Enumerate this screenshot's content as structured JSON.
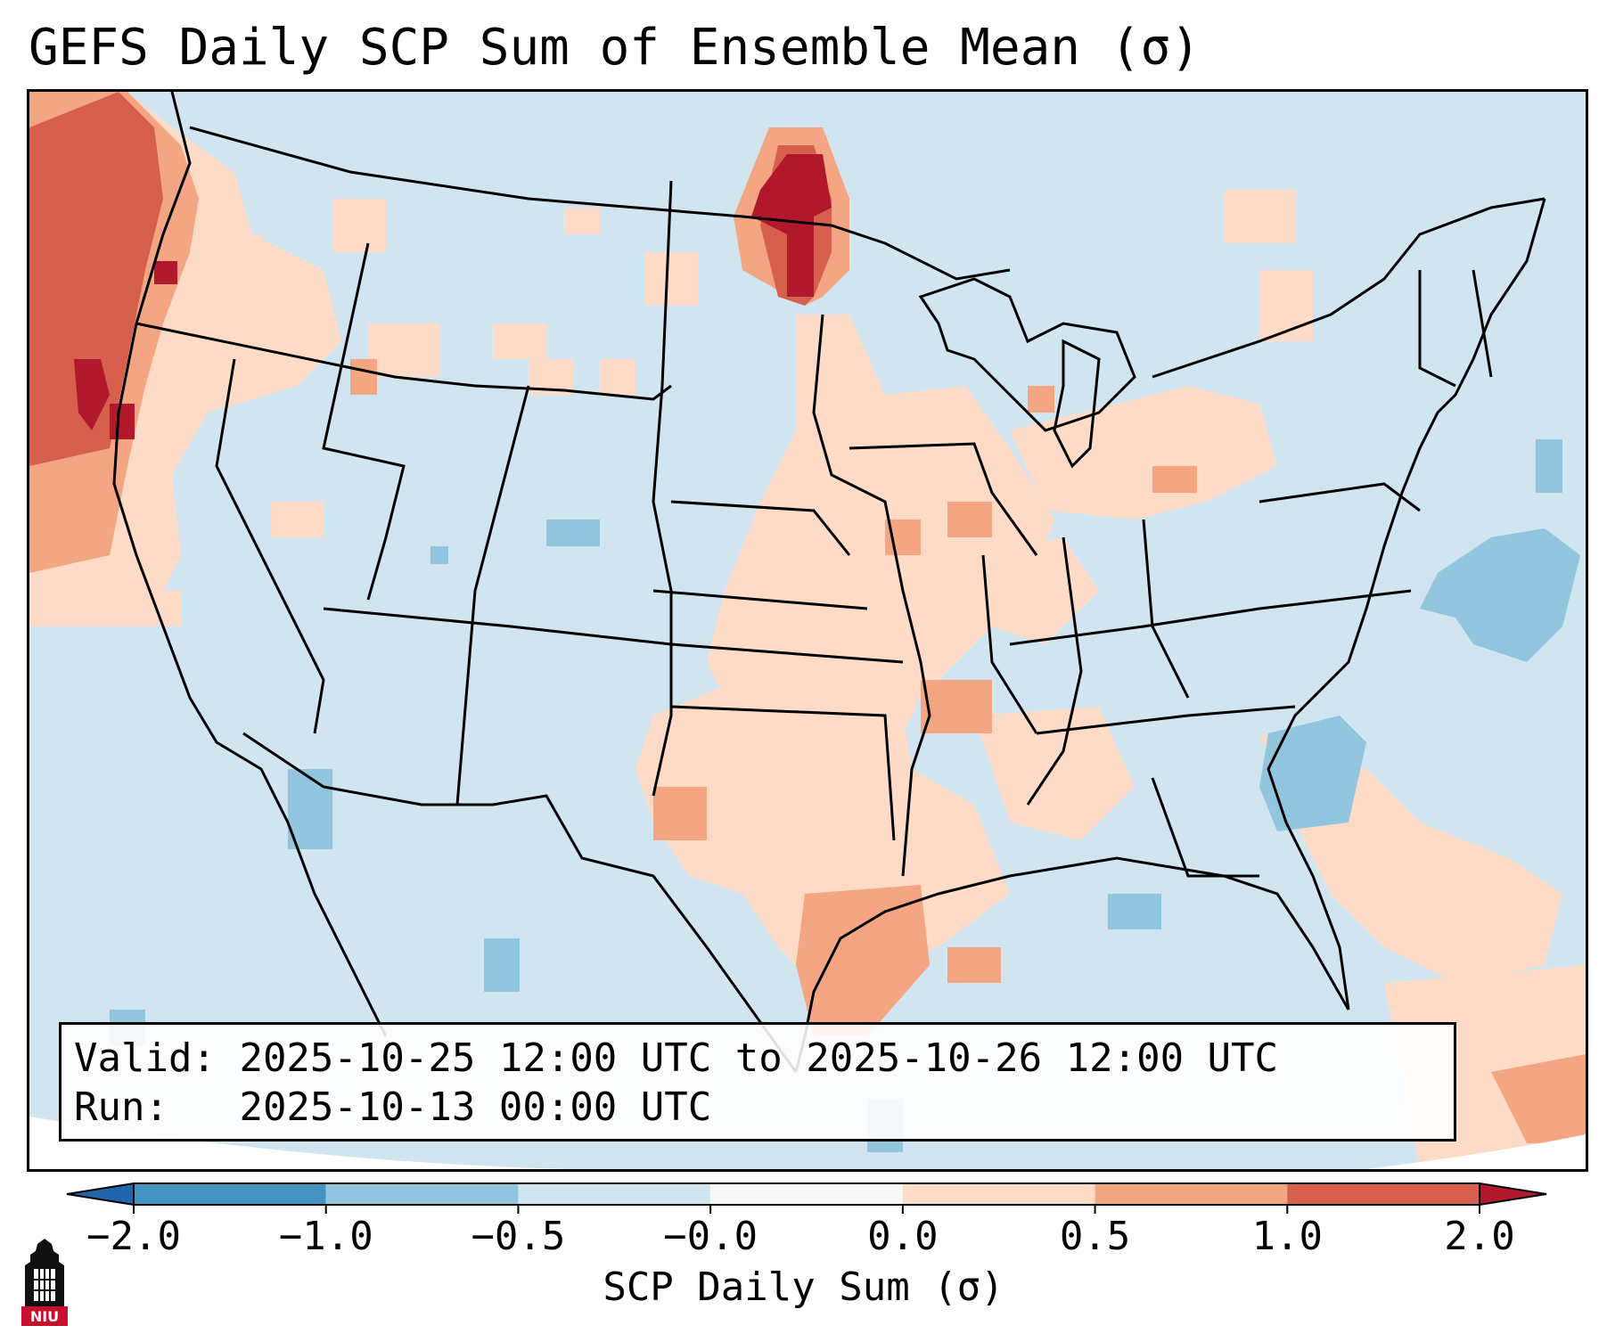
{
  "title": "GEFS Daily SCP Sum of Ensemble Mean (σ)",
  "info_box": {
    "valid_label": "Valid:",
    "valid_value": "2025-10-25 12:00 UTC to 2025-10-26 12:00 UTC",
    "run_label": "Run:",
    "run_value": "2025-10-13 00:00 UTC"
  },
  "colorbar": {
    "label": "SCP Daily Sum (σ)",
    "tick_labels": [
      "−2.0",
      "−1.0",
      "−0.5",
      "−0.0",
      "0.0",
      "0.5",
      "1.0",
      "2.0"
    ],
    "bins": [
      {
        "range": "< −2.0",
        "color": "#2166ac"
      },
      {
        "range": "−2.0 to −1.0",
        "color": "#4393c3"
      },
      {
        "range": "−1.0 to −0.5",
        "color": "#92c5de"
      },
      {
        "range": "−0.5 to −0.0",
        "color": "#d1e5f0"
      },
      {
        "range": "−0.0 to 0.0",
        "color": "#f7f7f7"
      },
      {
        "range": "0.0 to 0.5",
        "color": "#fddbc7"
      },
      {
        "range": "0.5 to 1.0",
        "color": "#f4a582"
      },
      {
        "range": "1.0 to 2.0",
        "color": "#d6604d"
      },
      {
        "range": "> 2.0",
        "color": "#b2182b"
      }
    ]
  },
  "map": {
    "region": "Continental United States",
    "background_color": "#d1e5f0",
    "features": [
      {
        "name": "Pacific Northwest coast",
        "level": "1.0 to 2.0"
      },
      {
        "name": "North Dakota / Minnesota border",
        "level": "> 2.0"
      },
      {
        "name": "Upper Mississippi Valley",
        "level": "0.0 to 0.5"
      },
      {
        "name": "Arkansas / Louisiana",
        "level": "0.0 to 0.5"
      },
      {
        "name": "Texas Gulf Coast",
        "level": "0.5 to 1.0"
      },
      {
        "name": "Western Atlantic",
        "level": "−1.0 to −0.5"
      }
    ]
  },
  "logo": {
    "text": "NIU",
    "icon": "niu-building-icon",
    "color": "#c8102e"
  }
}
